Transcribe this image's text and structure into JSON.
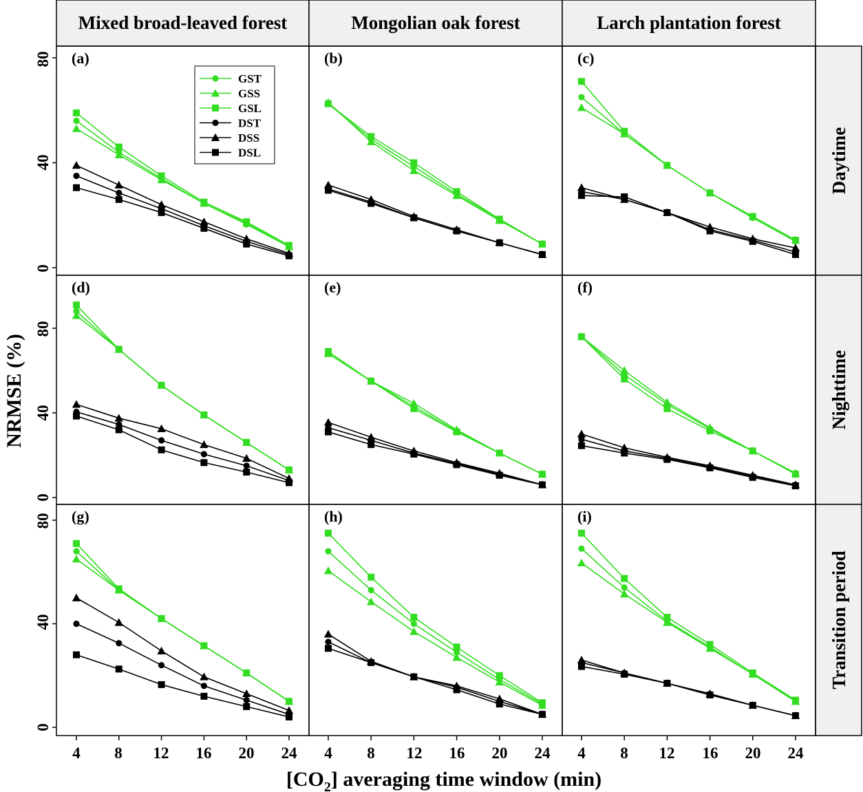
{
  "chart_data": {
    "type": "line",
    "x_label_prefix": "[CO",
    "x_label_sub": "2",
    "x_label_suffix": "] averaging time window (min)",
    "ylabel": "NRMSE (%)",
    "x_ticks": [
      4,
      8,
      12,
      16,
      20,
      24
    ],
    "y_ticks": [
      0,
      40,
      80
    ],
    "ylim": [
      -1,
      84
    ],
    "xlim": [
      2.2,
      25.6
    ],
    "grid": false,
    "legend_position": "top-left, inside panel (a)",
    "colors": {
      "green": "#33dd22",
      "black": "#000000"
    },
    "columns": [
      "Mixed broad-leaved forest",
      "Mongolian oak forest",
      "Larch plantation forest"
    ],
    "rows": [
      "Daytime",
      "Nighttime",
      "Transition period"
    ],
    "legend": [
      {
        "name": "GST",
        "color": "#33dd22",
        "marker": "circle"
      },
      {
        "name": "GSS",
        "color": "#33dd22",
        "marker": "triangle"
      },
      {
        "name": "GSL",
        "color": "#33dd22",
        "marker": "square"
      },
      {
        "name": "DST",
        "color": "#000000",
        "marker": "circle"
      },
      {
        "name": "DSS",
        "color": "#000000",
        "marker": "triangle"
      },
      {
        "name": "DSL",
        "color": "#000000",
        "marker": "square"
      }
    ],
    "x": [
      4,
      8,
      12,
      16,
      20,
      24
    ],
    "panels": [
      {
        "label": "(a)",
        "series": [
          {
            "name": "GST",
            "values": [
              56,
              44,
              34,
              24.5,
              16.5,
              8
            ]
          },
          {
            "name": "GSS",
            "values": [
              53,
              43,
              33.5,
              24.5,
              17,
              8
            ]
          },
          {
            "name": "GSL",
            "values": [
              59,
              46,
              35,
              25,
              17.5,
              8.5
            ]
          },
          {
            "name": "DST",
            "values": [
              35,
              28.5,
              22.5,
              16,
              10,
              5
            ]
          },
          {
            "name": "DSS",
            "values": [
              39,
              31.5,
              24,
              17.5,
              11,
              5.5
            ]
          },
          {
            "name": "DSL",
            "values": [
              30.5,
              26,
              21,
              15,
              9,
              4.5
            ]
          }
        ]
      },
      {
        "label": "(b)",
        "series": [
          {
            "name": "GST",
            "values": [
              62.5,
              49,
              38.5,
              28,
              18.5,
              9
            ]
          },
          {
            "name": "GSS",
            "values": [
              63,
              48,
              37,
              27.5,
              18,
              9
            ]
          },
          {
            "name": "GSL",
            "values": [
              62.5,
              50,
              40,
              29,
              18.5,
              9
            ]
          },
          {
            "name": "DST",
            "values": [
              30,
              25,
              19,
              14,
              9.5,
              5
            ]
          },
          {
            "name": "DSS",
            "values": [
              31.5,
              26,
              19.5,
              14.5,
              9.5,
              5
            ]
          },
          {
            "name": "DSL",
            "values": [
              29.5,
              24.5,
              19,
              14,
              9.5,
              5
            ]
          }
        ]
      },
      {
        "label": "(c)",
        "series": [
          {
            "name": "GST",
            "values": [
              65,
              51,
              39,
              28.5,
              19,
              10
            ]
          },
          {
            "name": "GSS",
            "values": [
              61,
              51,
              39,
              28.5,
              19.5,
              10.5
            ]
          },
          {
            "name": "GSL",
            "values": [
              71,
              52,
              39,
              28.5,
              19.5,
              10.5
            ]
          },
          {
            "name": "DST",
            "values": [
              29,
              26,
              21,
              14.5,
              10.5,
              6
            ]
          },
          {
            "name": "DSS",
            "values": [
              30.5,
              26,
              21,
              15.5,
              11,
              7.5
            ]
          },
          {
            "name": "DSL",
            "values": [
              27.5,
              27,
              21,
              14,
              10,
              5
            ]
          }
        ]
      },
      {
        "label": "(d)",
        "series": [
          {
            "name": "GST",
            "values": [
              88,
              70,
              53,
              39,
              26,
              13
            ]
          },
          {
            "name": "GSS",
            "values": [
              86,
              70,
              53,
              39,
              26,
              13
            ]
          },
          {
            "name": "GSL",
            "values": [
              91,
              70,
              53,
              39,
              26,
              13
            ]
          },
          {
            "name": "DST",
            "values": [
              40.5,
              34.5,
              27,
              20.5,
              15,
              8
            ]
          },
          {
            "name": "DSS",
            "values": [
              44,
              37.5,
              32.5,
              25,
              18.5,
              9
            ]
          },
          {
            "name": "DSL",
            "values": [
              38.5,
              32,
              22.5,
              16.5,
              12,
              7
            ]
          }
        ]
      },
      {
        "label": "(e)",
        "series": [
          {
            "name": "GST",
            "values": [
              68,
              55,
              43,
              31.5,
              21,
              11
            ]
          },
          {
            "name": "GSS",
            "values": [
              68,
              55,
              44.5,
              32,
              21,
              11
            ]
          },
          {
            "name": "GSL",
            "values": [
              69,
              55,
              42,
              31,
              21,
              11
            ]
          },
          {
            "name": "DST",
            "values": [
              33,
              27,
              21,
              16,
              11,
              6
            ]
          },
          {
            "name": "DSS",
            "values": [
              35.5,
              28.5,
              22,
              16.5,
              11.5,
              6
            ]
          },
          {
            "name": "DSL",
            "values": [
              31,
              25,
              20.5,
              15.5,
              10.5,
              6
            ]
          }
        ]
      },
      {
        "label": "(f)",
        "series": [
          {
            "name": "GST",
            "values": [
              76,
              58,
              44,
              32.5,
              22,
              11.5
            ]
          },
          {
            "name": "GSS",
            "values": [
              76,
              60,
              45,
              33,
              22,
              11.5
            ]
          },
          {
            "name": "GSL",
            "values": [
              76,
              56,
              42,
              31.5,
              22,
              11
            ]
          },
          {
            "name": "DST",
            "values": [
              27.5,
              22,
              18.5,
              14.5,
              10,
              6
            ]
          },
          {
            "name": "DSS",
            "values": [
              30,
              23.5,
              19,
              15,
              10.5,
              6
            ]
          },
          {
            "name": "DSL",
            "values": [
              24.5,
              21,
              18,
              14,
              9.5,
              5.5
            ]
          }
        ]
      },
      {
        "label": "(g)",
        "series": [
          {
            "name": "GST",
            "values": [
              68,
              53,
              42,
              31.5,
              21,
              10
            ]
          },
          {
            "name": "GSS",
            "values": [
              65,
              53,
              42,
              31.5,
              21,
              10
            ]
          },
          {
            "name": "GSL",
            "values": [
              71,
              53.5,
              42,
              31.5,
              21,
              10
            ]
          },
          {
            "name": "DST",
            "values": [
              40,
              32.5,
              24,
              16,
              10.5,
              5
            ]
          },
          {
            "name": "DSS",
            "values": [
              50,
              40.5,
              29.5,
              19.5,
              13,
              6.5
            ]
          },
          {
            "name": "DSL",
            "values": [
              28,
              22.5,
              16.5,
              12,
              8,
              4
            ]
          }
        ]
      },
      {
        "label": "(h)",
        "series": [
          {
            "name": "GST",
            "values": [
              68,
              53,
              40,
              29,
              18.5,
              9
            ]
          },
          {
            "name": "GSS",
            "values": [
              60.5,
              48.5,
              37,
              27,
              17.5,
              8.5
            ]
          },
          {
            "name": "GSL",
            "values": [
              75,
              58,
              42.5,
              31,
              20,
              9.5
            ]
          },
          {
            "name": "DST",
            "values": [
              33,
              25,
              19.5,
              15.5,
              10,
              5
            ]
          },
          {
            "name": "DSS",
            "values": [
              36,
              25.5,
              19.5,
              16,
              11,
              5
            ]
          },
          {
            "name": "DSL",
            "values": [
              30.5,
              25,
              19.5,
              14.5,
              9,
              5
            ]
          }
        ]
      },
      {
        "label": "(i)",
        "series": [
          {
            "name": "GST",
            "values": [
              69,
              54,
              41,
              31,
              20.5,
              10.5
            ]
          },
          {
            "name": "GSS",
            "values": [
              63.5,
              51.5,
              40.5,
              30.5,
              20.5,
              10
            ]
          },
          {
            "name": "GSL",
            "values": [
              75,
              57.5,
              42.5,
              32,
              21,
              10.5
            ]
          },
          {
            "name": "DST",
            "values": [
              25,
              21,
              17,
              12.5,
              8.5,
              4.5
            ]
          },
          {
            "name": "DSS",
            "values": [
              26,
              21,
              17,
              13,
              8.5,
              4.5
            ]
          },
          {
            "name": "DSL",
            "values": [
              23.5,
              20.5,
              17,
              12.5,
              8.5,
              4.5
            ]
          }
        ]
      }
    ]
  }
}
